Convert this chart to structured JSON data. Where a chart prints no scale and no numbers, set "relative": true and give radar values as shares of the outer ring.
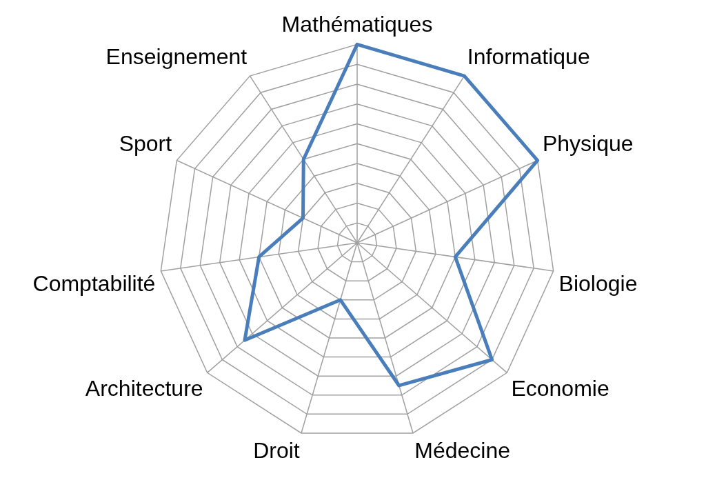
{
  "chart_data": {
    "type": "radar",
    "relative": true,
    "categories": [
      "Mathématiques",
      "Informatique",
      "Physique",
      "Biologie",
      "Economie",
      "Médecine",
      "Droit",
      "Architecture",
      "Comptabilité",
      "Sport",
      "Enseignement"
    ],
    "series": [
      {
        "color": "#4a7ebb",
        "values": [
          1,
          1,
          1,
          0.5,
          0.9,
          0.75,
          0.3,
          0.75,
          0.5,
          0.3,
          0.5
        ]
      }
    ],
    "grid": true,
    "legend": false,
    "marker": "none",
    "line_style": "solid"
  }
}
